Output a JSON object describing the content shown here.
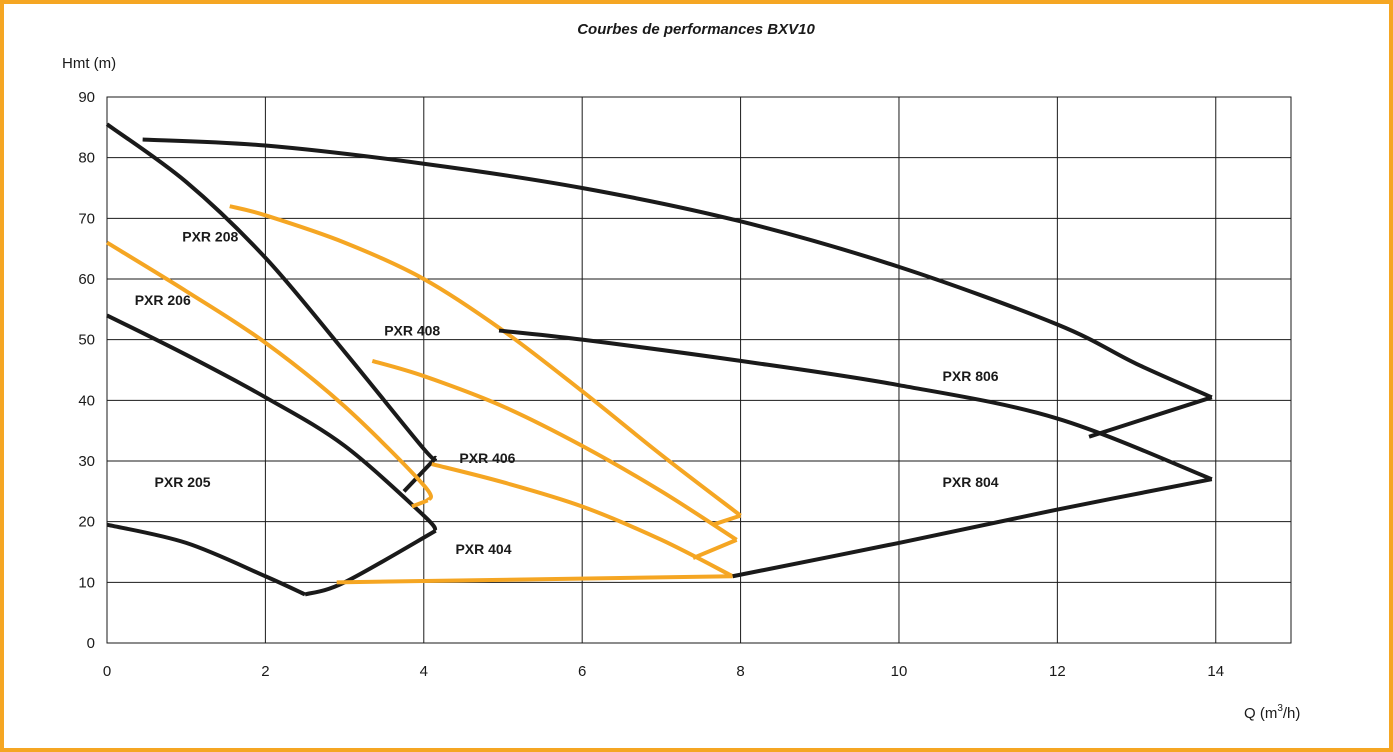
{
  "chart_data": {
    "type": "line",
    "title": "Courbes de performances BXV10",
    "ylabel": "Hmt (m)",
    "xlabel_main": "Q (m",
    "xlabel_sup": "3",
    "xlabel_tail": "/h)",
    "xlim": [
      0,
      14.95
    ],
    "ylim": [
      0,
      90
    ],
    "x_ticks": [
      0,
      2,
      4,
      6,
      8,
      10,
      12,
      14
    ],
    "y_ticks": [
      0,
      10,
      20,
      30,
      40,
      50,
      60,
      70,
      80,
      90
    ],
    "grid": true,
    "colors": {
      "frame": "#f5a623",
      "black": "#1a1a1a",
      "orange": "#f5a623"
    },
    "series": [
      {
        "key": "pxr205_top",
        "color": "black",
        "points": [
          [
            0,
            54
          ],
          [
            1,
            47.5
          ],
          [
            2,
            40.5
          ],
          [
            3,
            32.5
          ],
          [
            4,
            21
          ],
          [
            4.15,
            18.5
          ]
        ]
      },
      {
        "key": "pxr205_bottom",
        "color": "black",
        "points": [
          [
            0,
            19.5
          ],
          [
            1,
            16.5
          ],
          [
            2,
            11
          ],
          [
            2.5,
            8
          ]
        ]
      },
      {
        "key": "pxr404_left",
        "color": "black",
        "points": [
          [
            2.5,
            8
          ],
          [
            3,
            10
          ],
          [
            4.15,
            18.5
          ]
        ]
      },
      {
        "key": "pxr208_top",
        "color": "black",
        "points": [
          [
            0,
            85.5
          ],
          [
            1,
            76
          ],
          [
            2,
            63.5
          ],
          [
            3,
            48
          ],
          [
            4,
            32
          ],
          [
            4.15,
            30.5
          ]
        ]
      },
      {
        "key": "pxr208_bottom",
        "color": "black",
        "points": [
          [
            4.15,
            30.5
          ],
          [
            3.75,
            25
          ]
        ]
      },
      {
        "key": "pxr206_top",
        "color": "orange",
        "points": [
          [
            0,
            66
          ],
          [
            1,
            58
          ],
          [
            2,
            49.5
          ],
          [
            3,
            39
          ],
          [
            4,
            26
          ],
          [
            4.05,
            23.5
          ]
        ]
      },
      {
        "key": "pxr206_bottom",
        "color": "orange",
        "points": [
          [
            4.05,
            23.5
          ],
          [
            3.85,
            22.5
          ]
        ]
      },
      {
        "key": "pxr408_top",
        "color": "orange",
        "points": [
          [
            1.55,
            72
          ],
          [
            2,
            70.5
          ],
          [
            3,
            66
          ],
          [
            4,
            60
          ],
          [
            5,
            51.5
          ],
          [
            6,
            41.5
          ],
          [
            7,
            31
          ],
          [
            8,
            21
          ]
        ]
      },
      {
        "key": "pxr408_bottom",
        "color": "orange",
        "points": [
          [
            8,
            21
          ],
          [
            7.65,
            19.5
          ]
        ]
      },
      {
        "key": "pxr406_top",
        "color": "orange",
        "points": [
          [
            3.35,
            46.5
          ],
          [
            4,
            44
          ],
          [
            5,
            39
          ],
          [
            6,
            32.5
          ],
          [
            7,
            25
          ],
          [
            7.95,
            17
          ]
        ]
      },
      {
        "key": "pxr406_bottom",
        "color": "orange",
        "points": [
          [
            7.95,
            17
          ],
          [
            7.4,
            14
          ]
        ]
      },
      {
        "key": "pxr404_top",
        "color": "orange",
        "points": [
          [
            4.1,
            29.5
          ],
          [
            5,
            26.5
          ],
          [
            6,
            22.5
          ],
          [
            7,
            17
          ],
          [
            7.9,
            11
          ]
        ]
      },
      {
        "key": "pxr404_bottom",
        "color": "orange",
        "points": [
          [
            2.9,
            10
          ],
          [
            7.9,
            11
          ]
        ]
      },
      {
        "key": "pxr806_top",
        "color": "black",
        "points": [
          [
            0.45,
            83
          ],
          [
            2,
            82
          ],
          [
            4,
            79
          ],
          [
            6,
            75
          ],
          [
            8,
            69.5
          ],
          [
            10,
            62
          ],
          [
            12,
            52.5
          ],
          [
            13,
            46
          ],
          [
            13.95,
            40.5
          ]
        ]
      },
      {
        "key": "pxr806_bottom",
        "color": "black",
        "points": [
          [
            13.95,
            40.5
          ],
          [
            12.4,
            34
          ]
        ]
      },
      {
        "key": "pxr804_top",
        "color": "black",
        "points": [
          [
            4.95,
            51.5
          ],
          [
            6,
            50
          ],
          [
            8,
            46.5
          ],
          [
            10,
            42.5
          ],
          [
            12,
            37
          ],
          [
            13.95,
            27
          ]
        ]
      },
      {
        "key": "pxr804_bottom",
        "color": "black",
        "points": [
          [
            7.9,
            11
          ],
          [
            10,
            16.5
          ],
          [
            12,
            22
          ],
          [
            13.95,
            27
          ]
        ]
      }
    ],
    "curve_labels": [
      {
        "text": "PXR 208",
        "x": 0.95,
        "y": 67
      },
      {
        "text": "PXR 206",
        "x": 0.35,
        "y": 56.5
      },
      {
        "text": "PXR 408",
        "x": 3.5,
        "y": 51.5
      },
      {
        "text": "PXR 406",
        "x": 4.45,
        "y": 30.5
      },
      {
        "text": "PXR 205",
        "x": 0.6,
        "y": 26.5
      },
      {
        "text": "PXR 404",
        "x": 4.4,
        "y": 15.5
      },
      {
        "text": "PXR 806",
        "x": 10.55,
        "y": 44
      },
      {
        "text": "PXR 804",
        "x": 10.55,
        "y": 26.5
      }
    ]
  }
}
